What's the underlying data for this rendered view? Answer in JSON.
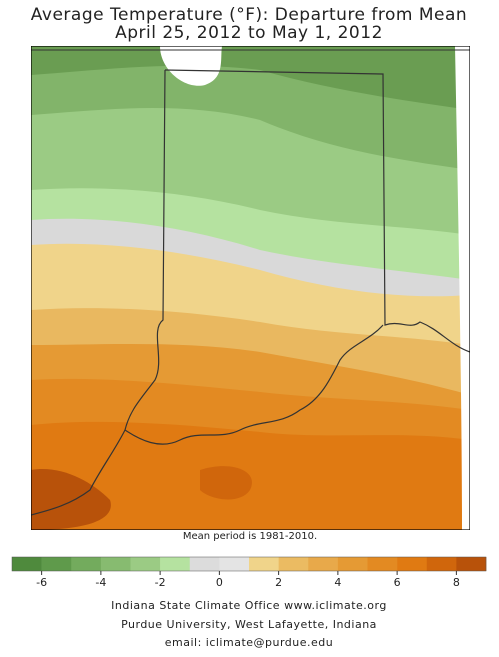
{
  "header": {
    "title": "Average Temperature (°F): Departure from Mean",
    "subtitle": "April 25, 2012 to May 1, 2012"
  },
  "map_note": "Mean period is 1981-2010.",
  "legend": {
    "lim": [
      -7,
      9
    ],
    "ticks": [
      -6,
      -4,
      -2,
      0,
      2,
      4,
      6,
      8
    ],
    "colors": [
      "#4f8a3d",
      "#5f9a4b",
      "#73ab5d",
      "#87bb70",
      "#9bcb84",
      "#b5e2a0",
      "#dcdcdc",
      "#e4e4e4",
      "#f0d48a",
      "#ebbb62",
      "#e8a94a",
      "#e59a34",
      "#e38a22",
      "#e07a12",
      "#d0660c",
      "#b8520a"
    ]
  },
  "footer": {
    "lines": [
      "Indiana State Climate Office    www.iclimate.org",
      "Purdue University, West Lafayette, Indiana",
      "email:   iclimate@purdue.edu"
    ]
  }
}
